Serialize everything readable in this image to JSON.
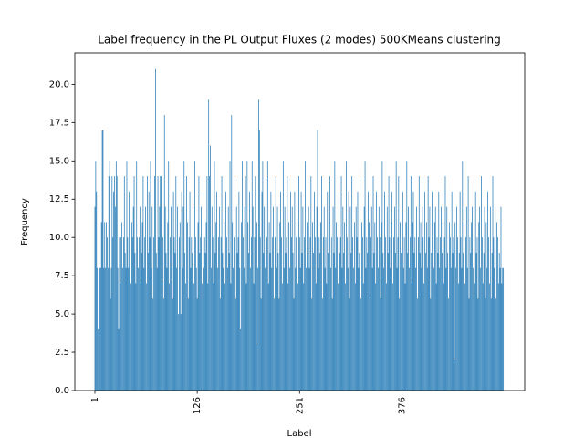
{
  "chart_data": {
    "type": "bar",
    "title": "Label frequency in the PL Output Fluxes (2 modes) 500KMeans clustering",
    "xlabel": "Label",
    "ylabel": "Frequency",
    "color": "#1f77b4",
    "xlim": [
      -23.5,
      526
    ],
    "xticks": [
      1,
      126,
      251,
      376
    ],
    "ylim": [
      0,
      22.05
    ],
    "yticks": [
      {
        "value": 0,
        "label": "0.0"
      },
      {
        "value": 2.5,
        "label": "2.5"
      },
      {
        "value": 5,
        "label": "5.0"
      },
      {
        "value": 7.5,
        "label": "7.5"
      },
      {
        "value": 10,
        "label": "10.0"
      },
      {
        "value": 12.5,
        "label": "12.5"
      },
      {
        "value": 15,
        "label": "15.0"
      },
      {
        "value": 17.5,
        "label": "17.5"
      },
      {
        "value": 20,
        "label": "20.0"
      }
    ],
    "x": [
      1,
      2,
      3,
      4,
      5,
      6,
      7,
      8,
      9,
      10,
      11,
      12,
      13,
      14,
      15,
      16,
      17,
      18,
      19,
      20,
      21,
      22,
      23,
      24,
      25,
      26,
      27,
      28,
      29,
      30,
      31,
      32,
      33,
      34,
      35,
      36,
      37,
      38,
      39,
      40,
      41,
      42,
      43,
      44,
      45,
      46,
      47,
      48,
      49,
      50,
      51,
      52,
      53,
      54,
      55,
      56,
      57,
      58,
      59,
      60,
      61,
      62,
      63,
      64,
      65,
      66,
      67,
      68,
      69,
      70,
      71,
      72,
      73,
      74,
      75,
      76,
      77,
      78,
      79,
      80,
      81,
      82,
      83,
      84,
      85,
      86,
      87,
      88,
      89,
      90,
      91,
      92,
      93,
      94,
      95,
      96,
      97,
      98,
      99,
      100,
      101,
      102,
      103,
      104,
      105,
      106,
      107,
      108,
      109,
      110,
      111,
      112,
      113,
      114,
      115,
      116,
      117,
      118,
      119,
      120,
      121,
      122,
      123,
      124,
      125,
      126,
      127,
      128,
      129,
      130,
      131,
      132,
      133,
      134,
      135,
      136,
      137,
      138,
      139,
      140,
      141,
      142,
      143,
      144,
      145,
      146,
      147,
      148,
      149,
      150,
      151,
      152,
      153,
      154,
      155,
      156,
      157,
      158,
      159,
      160,
      161,
      162,
      163,
      164,
      165,
      166,
      167,
      168,
      169,
      170,
      171,
      172,
      173,
      174,
      175,
      176,
      177,
      178,
      179,
      180,
      181,
      182,
      183,
      184,
      185,
      186,
      187,
      188,
      189,
      190,
      191,
      192,
      193,
      194,
      195,
      196,
      197,
      198,
      199,
      200,
      201,
      202,
      203,
      204,
      205,
      206,
      207,
      208,
      209,
      210,
      211,
      212,
      213,
      214,
      215,
      216,
      217,
      218,
      219,
      220,
      221,
      222,
      223,
      224,
      225,
      226,
      227,
      228,
      229,
      230,
      231,
      232,
      233,
      234,
      235,
      236,
      237,
      238,
      239,
      240,
      241,
      242,
      243,
      244,
      245,
      246,
      247,
      248,
      249,
      250,
      251,
      252,
      253,
      254,
      255,
      256,
      257,
      258,
      259,
      260,
      261,
      262,
      263,
      264,
      265,
      266,
      267,
      268,
      269,
      270,
      271,
      272,
      273,
      274,
      275,
      276,
      277,
      278,
      279,
      280,
      281,
      282,
      283,
      284,
      285,
      286,
      287,
      288,
      289,
      290,
      291,
      292,
      293,
      294,
      295,
      296,
      297,
      298,
      299,
      300,
      301,
      302,
      303,
      304,
      305,
      306,
      307,
      308,
      309,
      310,
      311,
      312,
      313,
      314,
      315,
      316,
      317,
      318,
      319,
      320,
      321,
      322,
      323,
      324,
      325,
      326,
      327,
      328,
      329,
      330,
      331,
      332,
      333,
      334,
      335,
      336,
      337,
      338,
      339,
      340,
      341,
      342,
      343,
      344,
      345,
      346,
      347,
      348,
      349,
      350,
      351,
      352,
      353,
      354,
      355,
      356,
      357,
      358,
      359,
      360,
      361,
      362,
      363,
      364,
      365,
      366,
      367,
      368,
      369,
      370,
      371,
      372,
      373,
      374,
      375,
      376,
      377,
      378,
      379,
      380,
      381,
      382,
      383,
      384,
      385,
      386,
      387,
      388,
      389,
      390,
      391,
      392,
      393,
      394,
      395,
      396,
      397,
      398,
      399,
      400,
      401,
      402,
      403,
      404,
      405,
      406,
      407,
      408,
      409,
      410,
      411,
      412,
      413,
      414,
      415,
      416,
      417,
      418,
      419,
      420,
      421,
      422,
      423,
      424,
      425,
      426,
      427,
      428,
      429,
      430,
      431,
      432,
      433,
      434,
      435,
      436,
      437,
      438,
      439,
      440,
      441,
      442,
      443,
      444,
      445,
      446,
      447,
      448,
      449,
      450,
      451,
      452,
      453,
      454,
      455,
      456,
      457,
      458,
      459,
      460,
      461,
      462,
      463,
      464,
      465,
      466,
      467,
      468,
      469,
      470,
      471,
      472,
      473,
      474,
      475,
      476,
      477,
      478,
      479,
      480,
      481,
      482,
      483,
      484,
      485,
      486,
      487,
      488,
      489,
      490,
      491,
      492,
      493,
      494,
      495,
      496,
      497,
      498,
      499,
      500
    ],
    "values": [
      12,
      15,
      13,
      8,
      4,
      15,
      8,
      8,
      11,
      17,
      17,
      8,
      11,
      8,
      11,
      10,
      8,
      14,
      15,
      6,
      8,
      14,
      10,
      13,
      14,
      12,
      15,
      14,
      8,
      4,
      10,
      7,
      10,
      11,
      8,
      10,
      14,
      9,
      8,
      15,
      10,
      8,
      13,
      5,
      7,
      11,
      10,
      12,
      14,
      9,
      7,
      15,
      10,
      8,
      10,
      12,
      7,
      9,
      11,
      14,
      8,
      10,
      12,
      7,
      14,
      9,
      13,
      10,
      15,
      8,
      12,
      6,
      10,
      14,
      21,
      9,
      8,
      14,
      10,
      12,
      14,
      14,
      7,
      10,
      6,
      18,
      12,
      9,
      8,
      11,
      15,
      7,
      10,
      12,
      8,
      6,
      13,
      10,
      9,
      14,
      8,
      12,
      5,
      10,
      11,
      5,
      13,
      8,
      12,
      15,
      9,
      7,
      14,
      11,
      6,
      10,
      13,
      8,
      10,
      9,
      12,
      7,
      15,
      10,
      8,
      6,
      11,
      14,
      9,
      10,
      12,
      7,
      13,
      8,
      10,
      9,
      11,
      14,
      7,
      19,
      14,
      16,
      8,
      12,
      10,
      7,
      15,
      9,
      11,
      13,
      8,
      10,
      12,
      6,
      10,
      14,
      9,
      8,
      11,
      7,
      13,
      10,
      8,
      12,
      9,
      15,
      7,
      18,
      11,
      8,
      10,
      14,
      6,
      12,
      9,
      10,
      13,
      8,
      4,
      11,
      15,
      10,
      8,
      12,
      14,
      7,
      15,
      11,
      9,
      13,
      8,
      10,
      15,
      12,
      7,
      10,
      14,
      3,
      11,
      8,
      19,
      17,
      10,
      6,
      13,
      15,
      9,
      12,
      8,
      14,
      10,
      15,
      7,
      11,
      9,
      13,
      8,
      10,
      12,
      6,
      10,
      14,
      8,
      12,
      9,
      6,
      11,
      13,
      10,
      7,
      15,
      8,
      12,
      9,
      10,
      14,
      7,
      11,
      8,
      13,
      10,
      12,
      9,
      6,
      13,
      8,
      10,
      11,
      7,
      14,
      10,
      8,
      13,
      9,
      12,
      7,
      10,
      15,
      8,
      11,
      9,
      12,
      8,
      10,
      14,
      6,
      11,
      9,
      13,
      10,
      7,
      12,
      17,
      8,
      10,
      9,
      11,
      14,
      6,
      10,
      12,
      8,
      10,
      7,
      13,
      9,
      11,
      14,
      8,
      10,
      6,
      12,
      9,
      15,
      8,
      11,
      10,
      7,
      13,
      9,
      10,
      14,
      8,
      12,
      9,
      11,
      7,
      15,
      10,
      8,
      13,
      6,
      12,
      9,
      14,
      10,
      8,
      11,
      7,
      12,
      10,
      13,
      8,
      9,
      14,
      6,
      11,
      10,
      7,
      12,
      15,
      8,
      10,
      9,
      13,
      11,
      6,
      10,
      12,
      8,
      14,
      9,
      11,
      7,
      13,
      10,
      8,
      12,
      10,
      6,
      11,
      15,
      9,
      8,
      13,
      10,
      7,
      12,
      9,
      14,
      10,
      8,
      11,
      13,
      7,
      10,
      12,
      9,
      15,
      8,
      10,
      14,
      6,
      11,
      9,
      12,
      13,
      8,
      10,
      7,
      11,
      15,
      9,
      12,
      8,
      10,
      14,
      7,
      11,
      13,
      9,
      10,
      8,
      12,
      6,
      10,
      14,
      9,
      11,
      8,
      12,
      10,
      7,
      13,
      9,
      11,
      8,
      14,
      10,
      12,
      6,
      9,
      13,
      10,
      8,
      11,
      12,
      7,
      10,
      9,
      13,
      8,
      10,
      12,
      9,
      11,
      7,
      10,
      14,
      8,
      12,
      9,
      6,
      11,
      10,
      8,
      13,
      9,
      10,
      2,
      11,
      8,
      12,
      10,
      7,
      9,
      13,
      10,
      8,
      15,
      9,
      11,
      7,
      10,
      12,
      8,
      14,
      6,
      10,
      9,
      11,
      12,
      8,
      10,
      7,
      13,
      9,
      10,
      6,
      11,
      12,
      8,
      14,
      10,
      7,
      9,
      12,
      6,
      11,
      8,
      13,
      10,
      7,
      12,
      6,
      9,
      14,
      10,
      8,
      12,
      6,
      11,
      10,
      7,
      9,
      8,
      12,
      7,
      8,
      8
    ]
  }
}
